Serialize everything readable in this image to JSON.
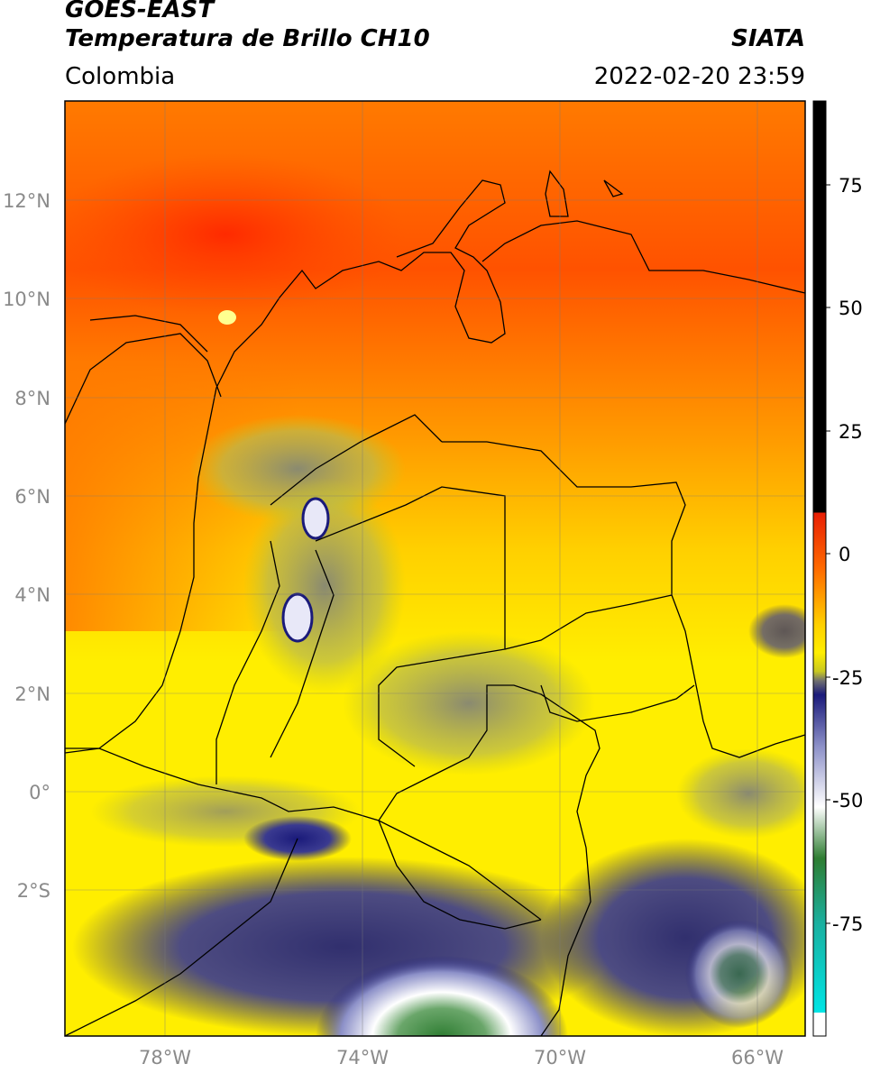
{
  "header": {
    "satellite": "GOES-EAST",
    "product": "Temperatura de Brillo CH10",
    "region": "Colombia",
    "brand": "SIATA",
    "datetime": "2022-02-20 23:59"
  },
  "map": {
    "lat_labels": [
      "12°N",
      "10°N",
      "8°N",
      "6°N",
      "4°N",
      "2°N",
      "0°",
      "2°S"
    ],
    "lon_labels": [
      "78°W",
      "74°W",
      "70°W",
      "66°W"
    ]
  },
  "colorbar": {
    "tick_labels": [
      "75",
      "50",
      "25",
      "0",
      "-25",
      "-50",
      "-75"
    ],
    "colors": {
      "black": "#000000",
      "red": "#e81e05",
      "orange": "#ff8a00",
      "yellow": "#ffee00",
      "olive": "#c8c820",
      "gray": "#707070",
      "navy": "#1a1a7a",
      "white": "#ffffff",
      "green": "#2e7d32",
      "teal": "#1ab0a0",
      "cyan": "#00e5e5"
    }
  }
}
